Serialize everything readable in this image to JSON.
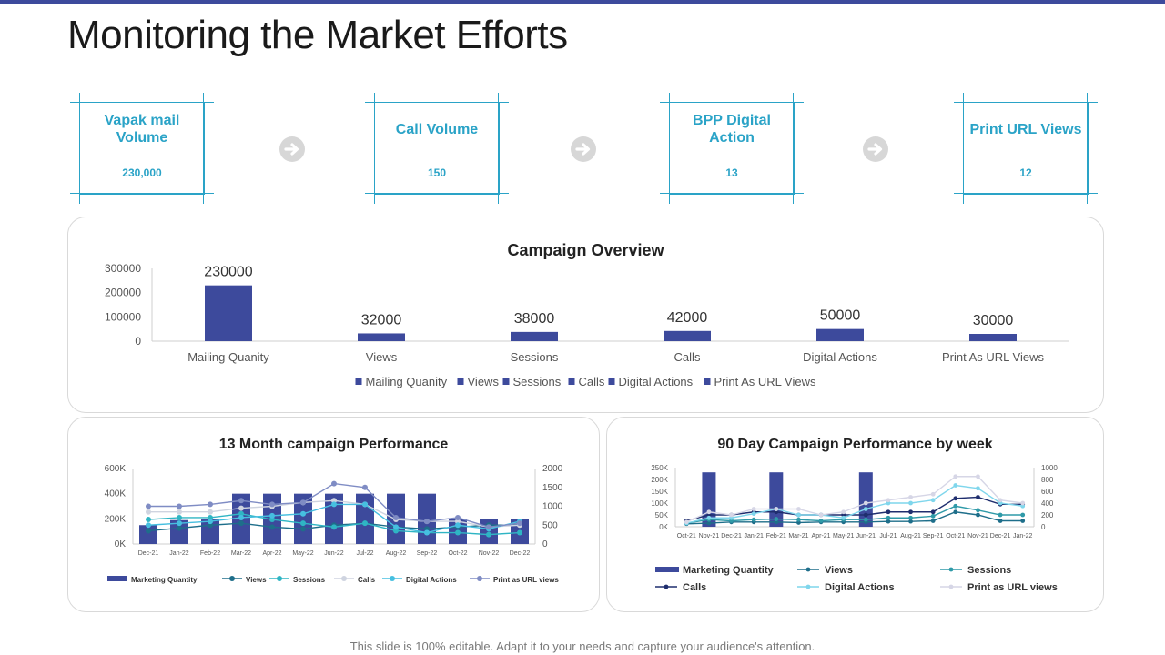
{
  "title": "Monitoring the Market Efforts",
  "colors": {
    "bar": "#3d4a9c",
    "accent": "#2aa3c7",
    "topbar": "#3d4a9c"
  },
  "kpis": [
    {
      "label": "Vapak mail Volume",
      "value": "230,000"
    },
    {
      "label": "Call Volume",
      "value": "150"
    },
    {
      "label": "BPP Digital Action",
      "value": "13"
    },
    {
      "label": "Print URL Views",
      "value": "12"
    }
  ],
  "arrow_icon": "circle-arrow-right-icon",
  "chart_data": [
    {
      "type": "bar",
      "title": "Campaign Overview",
      "categories": [
        "Mailing Quanity",
        "Views",
        "Sessions",
        "Calls",
        "Digital Actions",
        "Print As URL Views"
      ],
      "values": [
        230000,
        32000,
        38000,
        42000,
        50000,
        30000
      ],
      "value_labels": [
        "230000",
        "32000",
        "38000",
        "42000",
        "50000",
        "30000"
      ],
      "yticks": [
        "0",
        "100000",
        "200000",
        "300000"
      ],
      "ylim": [
        0,
        300000
      ],
      "legend": [
        "Mailing Quanity",
        "Views",
        "Sessions",
        "Calls",
        "Digital Actions",
        "Print As URL Views"
      ],
      "legend_position": "bottom"
    },
    {
      "type": "bar",
      "title": "13 Month campaign Performance",
      "categories": [
        "Dec-21",
        "Jan-22",
        "Feb-22",
        "Mar-22",
        "Apr-22",
        "May-22",
        "Jun-22",
        "Jul-22",
        "Aug-22",
        "Sep-22",
        "Oct-22",
        "Nov-22",
        "Dec-22"
      ],
      "ylim_left": [
        0,
        600000
      ],
      "ylim_right": [
        0,
        2000
      ],
      "yticks_left": [
        "0K",
        "200K",
        "400K",
        "600K"
      ],
      "yticks_right": [
        "0",
        "500",
        "1000",
        "1500",
        "2000"
      ],
      "series": [
        {
          "name": "Marketing Quantity",
          "kind": "bar",
          "axis": "left",
          "values": [
            150000,
            190000,
            195000,
            400000,
            400000,
            400000,
            400000,
            400000,
            400000,
            400000,
            200000,
            200000,
            200000
          ]
        },
        {
          "name": "Views",
          "kind": "line",
          "axis": "right",
          "values": [
            350,
            420,
            500,
            550,
            450,
            400,
            500,
            550,
            450,
            400,
            450,
            500,
            500
          ]
        },
        {
          "name": "Sessions",
          "kind": "line",
          "axis": "right",
          "values": [
            650,
            700,
            700,
            800,
            650,
            550,
            450,
            550,
            350,
            300,
            300,
            250,
            300
          ]
        },
        {
          "name": "Calls",
          "kind": "line",
          "axis": "right",
          "values": [
            850,
            850,
            850,
            950,
            1000,
            1100,
            1150,
            1050,
            650,
            600,
            600,
            450,
            500
          ]
        },
        {
          "name": "Digital Actions",
          "kind": "line",
          "axis": "right",
          "values": [
            500,
            550,
            600,
            700,
            750,
            800,
            1050,
            1050,
            450,
            300,
            500,
            400,
            600
          ]
        },
        {
          "name": "Print as URL views",
          "kind": "line",
          "axis": "right",
          "values": [
            1000,
            1000,
            1050,
            1150,
            1050,
            1100,
            1600,
            1500,
            700,
            600,
            700,
            450,
            550
          ]
        }
      ],
      "legend_position": "bottom"
    },
    {
      "type": "bar",
      "title": "90 Day Campaign Performance by week",
      "categories": [
        "Oct-21",
        "Nov-21",
        "Dec-21",
        "Jan-21",
        "Feb-21",
        "Mar-21",
        "Apr-21",
        "May-21",
        "Jun-21",
        "Jul-21",
        "Aug-21",
        "Sep-21",
        "Oct-21",
        "Nov-21",
        "Dec-21",
        "Jan-22"
      ],
      "ylim_left": [
        0,
        250000
      ],
      "ylim_right": [
        0,
        1000
      ],
      "yticks_left": [
        "0K",
        "50K",
        "100K",
        "150K",
        "200K",
        "250K"
      ],
      "yticks_right": [
        "0",
        "200",
        "400",
        "600",
        "800",
        "1000"
      ],
      "series": [
        {
          "name": "Marketing Quantity",
          "kind": "bar",
          "axis": "left",
          "values": [
            0,
            230000,
            0,
            0,
            230000,
            0,
            0,
            0,
            230000,
            0,
            0,
            0,
            0,
            0,
            0,
            0
          ]
        },
        {
          "name": "Views",
          "kind": "line",
          "axis": "right",
          "values": [
            50,
            60,
            80,
            80,
            80,
            70,
            80,
            80,
            80,
            90,
            90,
            100,
            250,
            200,
            100,
            100
          ]
        },
        {
          "name": "Sessions",
          "kind": "line",
          "axis": "right",
          "values": [
            60,
            120,
            100,
            120,
            130,
            120,
            100,
            120,
            120,
            150,
            150,
            180,
            350,
            280,
            200,
            200
          ]
        },
        {
          "name": "Calls",
          "kind": "line",
          "axis": "right",
          "values": [
            100,
            200,
            200,
            250,
            250,
            200,
            200,
            200,
            200,
            250,
            250,
            250,
            480,
            500,
            380,
            380
          ]
        },
        {
          "name": "Digital Actions",
          "kind": "line",
          "axis": "right",
          "values": [
            60,
            150,
            150,
            220,
            300,
            200,
            200,
            150,
            300,
            400,
            400,
            450,
            700,
            650,
            400,
            350
          ]
        },
        {
          "name": "Print as URL views",
          "kind": "line",
          "axis": "right",
          "values": [
            80,
            250,
            200,
            300,
            300,
            300,
            200,
            250,
            400,
            450,
            500,
            550,
            850,
            850,
            450,
            400
          ]
        }
      ],
      "legend_position": "bottom"
    }
  ],
  "footer": "This slide is 100% editable. Adapt it to your needs and capture your audience's attention."
}
